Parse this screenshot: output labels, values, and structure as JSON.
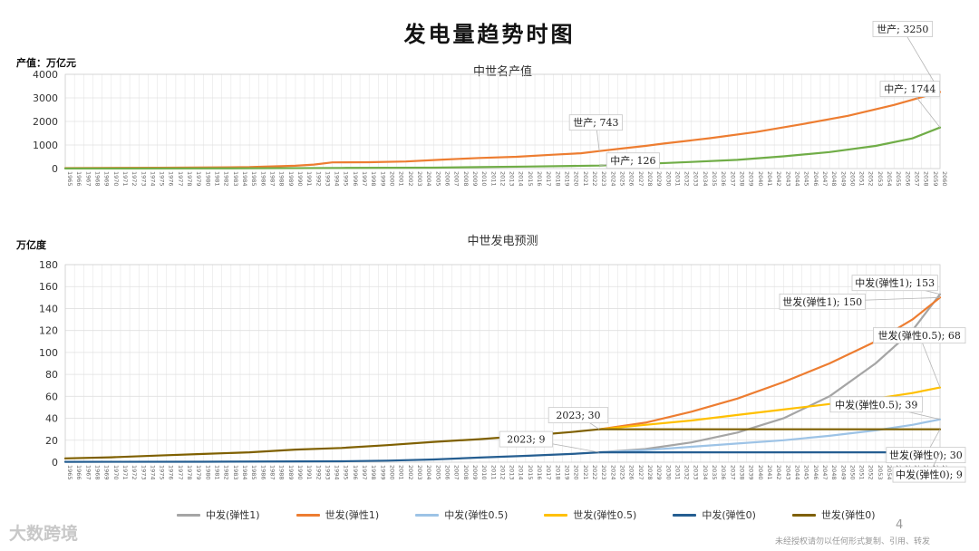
{
  "title": "发电量趋势时图",
  "footer": {
    "watermark": "大数跨境",
    "page_number": "4",
    "note": "未经授权请勿以任何形式复制、引用、转发"
  },
  "chart_data": [
    {
      "type": "line",
      "title": "中世名产值",
      "ylabel": "产值：万亿元",
      "ylim": [
        0,
        4000
      ],
      "yticks": [
        0,
        1000,
        2000,
        3000,
        4000
      ],
      "xrange": [
        1965,
        2060
      ],
      "series": [
        {
          "name": "世产",
          "color": "#ed7d31",
          "points": [
            [
              1965,
              20
            ],
            [
              1975,
              35
            ],
            [
              1985,
              60
            ],
            [
              1990,
              120
            ],
            [
              1992,
              170
            ],
            [
              1994,
              260
            ],
            [
              1998,
              270
            ],
            [
              2002,
              300
            ],
            [
              2006,
              380
            ],
            [
              2010,
              450
            ],
            [
              2014,
              500
            ],
            [
              2018,
              590
            ],
            [
              2021,
              650
            ],
            [
              2023,
              743
            ],
            [
              2025,
              830
            ],
            [
              2028,
              960
            ],
            [
              2030,
              1060
            ],
            [
              2035,
              1290
            ],
            [
              2040,
              1550
            ],
            [
              2045,
              1880
            ],
            [
              2050,
              2240
            ],
            [
              2055,
              2700
            ],
            [
              2060,
              3250
            ]
          ]
        },
        {
          "name": "中产",
          "color": "#70ad47",
          "points": [
            [
              1965,
              5
            ],
            [
              1985,
              10
            ],
            [
              1995,
              25
            ],
            [
              2005,
              40
            ],
            [
              2010,
              60
            ],
            [
              2015,
              85
            ],
            [
              2020,
              110
            ],
            [
              2023,
              126
            ],
            [
              2028,
              200
            ],
            [
              2033,
              280
            ],
            [
              2038,
              370
            ],
            [
              2043,
              520
            ],
            [
              2048,
              700
            ],
            [
              2053,
              960
            ],
            [
              2057,
              1280
            ],
            [
              2060,
              1744
            ]
          ]
        }
      ],
      "annotations": [
        {
          "text": "世产; 743",
          "series": "世产",
          "x": 2023,
          "y": 743
        },
        {
          "text": "中产; 126",
          "series": "中产",
          "x": 2023,
          "y": 126
        },
        {
          "text": "世产; 3250",
          "series": "世产",
          "x": 2060,
          "y": 3250
        },
        {
          "text": "中产; 1744",
          "series": "中产",
          "x": 2060,
          "y": 1744
        }
      ]
    },
    {
      "type": "line",
      "title": "中世发电预测",
      "ylabel": "万亿度",
      "ylim": [
        0,
        180
      ],
      "yticks": [
        0,
        20,
        40,
        60,
        80,
        100,
        120,
        140,
        160,
        180
      ],
      "xrange": [
        1965,
        2060
      ],
      "series": [
        {
          "name": "中发(弹性1)",
          "color": "#a5a5a5",
          "points": [
            [
              2023,
              9
            ],
            [
              2028,
              12
            ],
            [
              2033,
              18
            ],
            [
              2038,
              27
            ],
            [
              2043,
              40
            ],
            [
              2048,
              60
            ],
            [
              2053,
              90
            ],
            [
              2057,
              120
            ],
            [
              2060,
              153
            ]
          ]
        },
        {
          "name": "世发(弹性1)",
          "color": "#ed7d31",
          "points": [
            [
              2023,
              30
            ],
            [
              2028,
              36
            ],
            [
              2033,
              46
            ],
            [
              2038,
              58
            ],
            [
              2043,
              73
            ],
            [
              2048,
              90
            ],
            [
              2053,
              110
            ],
            [
              2057,
              130
            ],
            [
              2060,
              150
            ]
          ]
        },
        {
          "name": "中发(弹性0.5)",
          "color": "#9dc3e6",
          "points": [
            [
              2023,
              9
            ],
            [
              2028,
              11
            ],
            [
              2033,
              14
            ],
            [
              2038,
              17
            ],
            [
              2043,
              20
            ],
            [
              2048,
              24
            ],
            [
              2053,
              29
            ],
            [
              2057,
              34
            ],
            [
              2060,
              39
            ]
          ]
        },
        {
          "name": "世发(弹性0.5)",
          "color": "#ffc000",
          "points": [
            [
              2023,
              30
            ],
            [
              2028,
              34
            ],
            [
              2033,
              38
            ],
            [
              2038,
              43
            ],
            [
              2043,
              48
            ],
            [
              2048,
              53
            ],
            [
              2053,
              58
            ],
            [
              2057,
              63
            ],
            [
              2060,
              68
            ]
          ]
        },
        {
          "name": "中发(弹性0)",
          "color": "#255e91",
          "points": [
            [
              1965,
              0.3
            ],
            [
              1980,
              0.4
            ],
            [
              1995,
              0.8
            ],
            [
              2000,
              1.4
            ],
            [
              2005,
              2.5
            ],
            [
              2010,
              4.2
            ],
            [
              2015,
              5.8
            ],
            [
              2020,
              7.5
            ],
            [
              2023,
              9
            ],
            [
              2060,
              9
            ]
          ]
        },
        {
          "name": "世发(弹性0)",
          "color": "#7f6000",
          "points": [
            [
              1965,
              3.5
            ],
            [
              1970,
              4.5
            ],
            [
              1975,
              6
            ],
            [
              1980,
              7.5
            ],
            [
              1985,
              9
            ],
            [
              1990,
              11.5
            ],
            [
              1995,
              13
            ],
            [
              2000,
              15.5
            ],
            [
              2005,
              18.5
            ],
            [
              2010,
              21
            ],
            [
              2015,
              24
            ],
            [
              2020,
              27.5
            ],
            [
              2023,
              30
            ],
            [
              2060,
              30
            ]
          ]
        }
      ],
      "annotations": [
        {
          "text": "中发(弹性1); 153",
          "series": "中发(弹性1)",
          "x": 2060,
          "y": 153
        },
        {
          "text": "世发(弹性1); 150",
          "series": "世发(弹性1)",
          "x": 2060,
          "y": 150
        },
        {
          "text": "世发(弹性0.5); 68",
          "series": "世发(弹性0.5)",
          "x": 2060,
          "y": 68
        },
        {
          "text": "中发(弹性0.5); 39",
          "series": "中发(弹性0.5)",
          "x": 2060,
          "y": 39
        },
        {
          "text": "世发(弹性0); 30",
          "series": "世发(弹性0)",
          "x": 2060,
          "y": 30
        },
        {
          "text": "中发(弹性0); 9",
          "series": "中发(弹性0)",
          "x": 2060,
          "y": 9
        },
        {
          "text": "2023; 30",
          "series": "世发(弹性0)",
          "x": 2023,
          "y": 30
        },
        {
          "text": "2023; 9",
          "series": "中发(弹性0)",
          "x": 2023,
          "y": 9
        }
      ],
      "legend": [
        "中发(弹性1)",
        "世发(弹性1)",
        "中发(弹性0.5)",
        "世发(弹性0.5)",
        "中发(弹性0)",
        "世发(弹性0)"
      ],
      "legend_position": "bottom"
    }
  ]
}
